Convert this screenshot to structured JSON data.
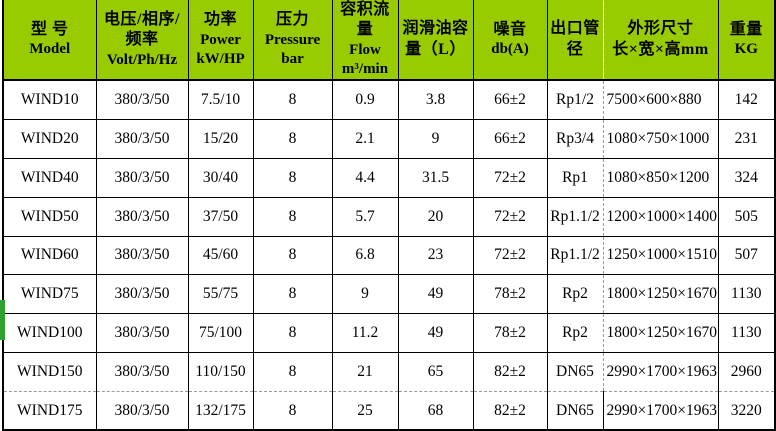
{
  "table": {
    "columns": [
      {
        "id": "model",
        "lines": [
          "型 号",
          "Model"
        ]
      },
      {
        "id": "voltage",
        "lines": [
          "电压/相序/",
          "频率",
          "Volt/Ph/Hz"
        ]
      },
      {
        "id": "power",
        "lines": [
          "功率",
          "Power",
          "kW/HP"
        ]
      },
      {
        "id": "pressure",
        "lines": [
          "压力",
          "Pressure",
          "bar"
        ]
      },
      {
        "id": "flow",
        "lines": [
          "容积流量",
          "Flow",
          "m³/min"
        ]
      },
      {
        "id": "oil",
        "lines": [
          "润滑油容",
          "量（L）"
        ]
      },
      {
        "id": "noise",
        "lines": [
          "噪音",
          "db(A)"
        ]
      },
      {
        "id": "outlet",
        "lines": [
          "出口管径"
        ]
      },
      {
        "id": "dimensions",
        "lines": [
          "外形尺寸",
          "长×宽×高mm"
        ]
      },
      {
        "id": "weight",
        "lines": [
          "重量",
          "KG"
        ]
      }
    ],
    "rows": [
      [
        "WIND10",
        "380/3/50",
        "7.5/10",
        "8",
        "0.9",
        "3.8",
        "66±2",
        "Rp1/2",
        "7500×600×880",
        "142"
      ],
      [
        "WIND20",
        "380/3/50",
        "15/20",
        "8",
        "2.1",
        "9",
        "66±2",
        "Rp3/4",
        "1080×750×1000",
        "231"
      ],
      [
        "WIND40",
        "380/3/50",
        "30/40",
        "8",
        "4.4",
        "31.5",
        "72±2",
        "Rp1",
        "1080×850×1200",
        "324"
      ],
      [
        "WIND50",
        "380/3/50",
        "37/50",
        "8",
        "5.7",
        "20",
        "72±2",
        "Rp1.1/2",
        "1200×1000×1400",
        "505"
      ],
      [
        "WIND60",
        "380/3/50",
        "45/60",
        "8",
        "6.8",
        "23",
        "72±2",
        "Rp1.1/2",
        "1250×1000×1510",
        "507"
      ],
      [
        "WIND75",
        "380/3/50",
        "55/75",
        "8",
        "9",
        "49",
        "78±2",
        "Rp2",
        "1800×1250×1670",
        "1130"
      ],
      [
        "WIND100",
        "380/3/50",
        "75/100",
        "8",
        "11.2",
        "49",
        "78±2",
        "Rp2",
        "1800×1250×1670",
        "1130"
      ],
      [
        "WIND150",
        "380/3/50",
        "110/150",
        "8",
        "21",
        "65",
        "82±2",
        "DN65",
        "2990×1700×1963",
        "2960"
      ],
      [
        "WIND175",
        "380/3/50",
        "132/175",
        "8",
        "25",
        "68",
        "82±2",
        "DN65",
        "2990×1700×1963",
        "3220"
      ]
    ],
    "highlighted_row": "WIND100"
  },
  "colors": {
    "header_bg": "#99cc00",
    "grid_border": "#000000",
    "dashed_divider": "#9a9a9a",
    "highlight_bar": "#2fa12f"
  }
}
